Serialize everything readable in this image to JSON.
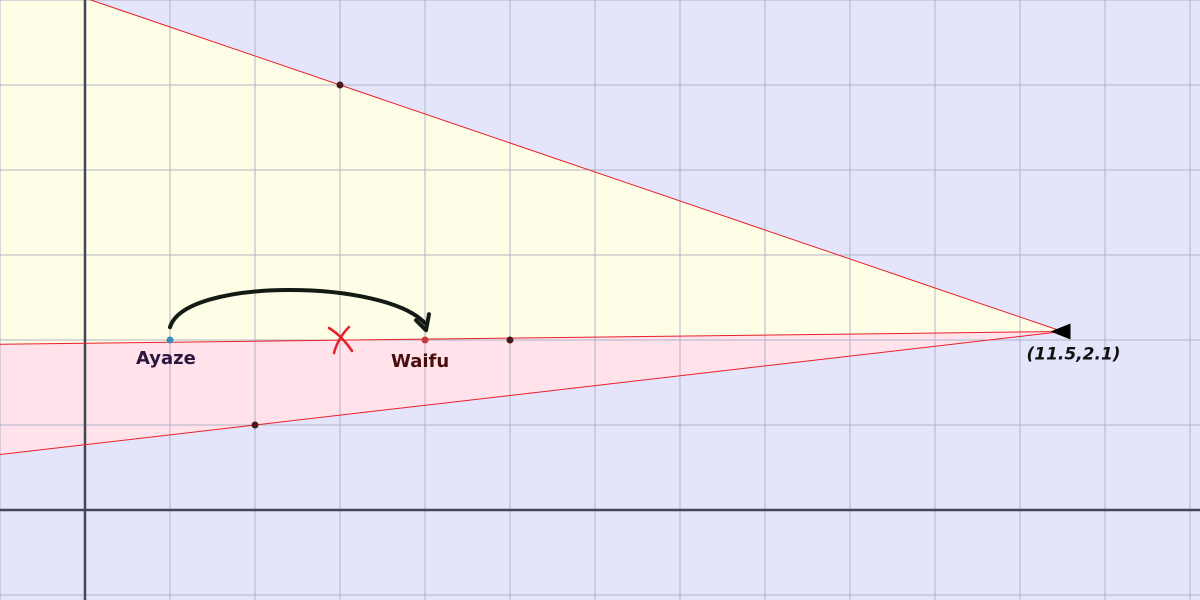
{
  "diagram": {
    "axes": {
      "x_range": [
        -1,
        13.1
      ],
      "y_range": [
        -1,
        6
      ],
      "grid_step": 1,
      "grid": true
    },
    "colors": {
      "background": "#e4e4fb",
      "grid": "#b2b2c8",
      "axis": "#454558",
      "boundary": "#e8202a",
      "yellow_fill": "#fefee6",
      "pink_fill": "#ffe2ea",
      "arrow": "#141a14",
      "cross": "#e8202a",
      "ayaze_label": "#2b1640",
      "waifu_label": "#4a0d0d"
    },
    "vertex": {
      "x": 11.5,
      "y": 2.1,
      "label": "(11.5,2.1)"
    },
    "upper_line": {
      "through": [
        3,
        5
      ]
    },
    "middle_line": {
      "through": [
        -1,
        1.95
      ]
    },
    "lower_line": {
      "through": [
        2,
        1
      ]
    },
    "points": [
      {
        "name": "Ayaze",
        "x": 1,
        "y": 2,
        "color": "#3a8fb8",
        "label": "Ayaze"
      },
      {
        "name": "Waifu",
        "x": 4,
        "y": 2,
        "color": "#c83a3a",
        "label": "Waifu"
      },
      {
        "name": "upper-point",
        "x": 3,
        "y": 5,
        "color": "#4a1a1a"
      },
      {
        "name": "lower-point",
        "x": 2,
        "y": 1,
        "color": "#4a1a1a"
      },
      {
        "name": "middle-point",
        "x": 5,
        "y": 2,
        "color": "#4a1a1a"
      }
    ],
    "cross_mark": {
      "x": 3,
      "y": 2
    },
    "jump_arrow": {
      "from": [
        1,
        2.15
      ],
      "to": [
        4,
        2.15
      ]
    }
  }
}
